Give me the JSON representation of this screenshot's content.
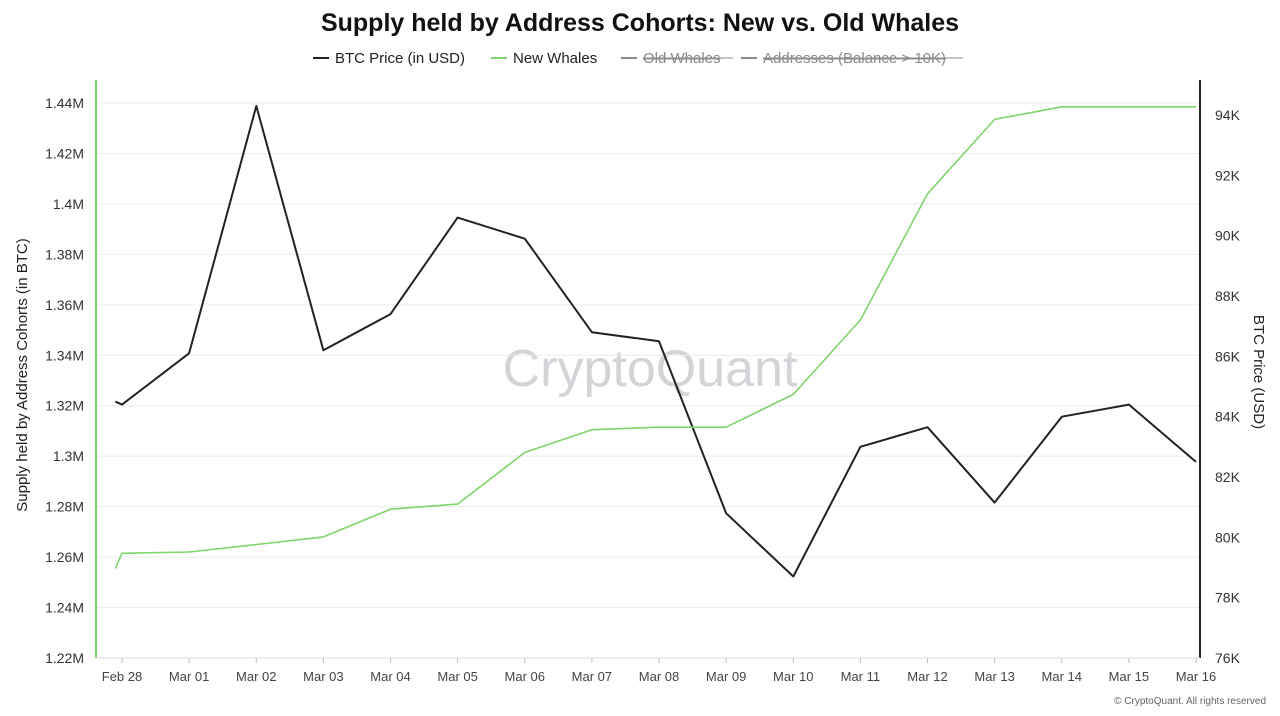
{
  "title": "Supply held by Address Cohorts: New vs. Old Whales",
  "watermark": "CryptoQuant",
  "copyright": "© CryptoQuant. All rights reserved",
  "colors": {
    "btc_price": "#222222",
    "new_whales": "#7ed56a",
    "hidden_series": "#8a8a8a",
    "grid": "#ececec"
  },
  "legend": [
    {
      "label": "BTC Price (in USD)",
      "color": "#222222",
      "hidden": false
    },
    {
      "label": "New Whales",
      "color": "#7ed56a",
      "hidden": false
    },
    {
      "label": "Old Whales",
      "color": "#8a8a8a",
      "hidden": true
    },
    {
      "label": "Addresses (Balance > 10K)",
      "color": "#8a8a8a",
      "hidden": true
    }
  ],
  "chart_data": {
    "type": "line",
    "title": "Supply held by Address Cohorts: New vs. Old Whales",
    "categories": [
      "Feb 28",
      "Mar 01",
      "Mar 02",
      "Mar 03",
      "Mar 04",
      "Mar 05",
      "Mar 06",
      "Mar 07",
      "Mar 08",
      "Mar 09",
      "Mar 10",
      "Mar 11",
      "Mar 12",
      "Mar 13",
      "Mar 14",
      "Mar 15",
      "Mar 16"
    ],
    "y_left": {
      "label": "Supply held by Address Cohorts (in BTC)",
      "range": [
        1.22,
        1.44
      ],
      "ticks": [
        1.22,
        1.24,
        1.26,
        1.28,
        1.3,
        1.32,
        1.34,
        1.36,
        1.38,
        1.4,
        1.42,
        1.44
      ],
      "tick_labels": [
        "1.22M",
        "1.24M",
        "1.26M",
        "1.28M",
        "1.3M",
        "1.32M",
        "1.34M",
        "1.36M",
        "1.38M",
        "1.4M",
        "1.42M",
        "1.44M"
      ]
    },
    "y_right": {
      "label": "BTC Price (USD)",
      "range": [
        76000,
        94000
      ],
      "ticks": [
        76000,
        78000,
        80000,
        82000,
        84000,
        86000,
        88000,
        90000,
        92000,
        94000
      ],
      "tick_labels": [
        "76K",
        "78K",
        "80K",
        "82K",
        "84K",
        "86K",
        "88K",
        "90K",
        "92K",
        "94K"
      ]
    },
    "grid": true,
    "legend_position": "top-center",
    "series": [
      {
        "name": "BTC Price (in USD)",
        "axis": "right",
        "color": "#222222",
        "points": [
          {
            "x": -0.1,
            "y": 84500
          },
          {
            "x": 0.0,
            "y": 84400
          },
          {
            "x": 1.0,
            "y": 86100
          },
          {
            "x": 2.0,
            "y": 94300
          },
          {
            "x": 3.0,
            "y": 86200
          },
          {
            "x": 4.0,
            "y": 87400
          },
          {
            "x": 5.0,
            "y": 90600
          },
          {
            "x": 6.0,
            "y": 89900
          },
          {
            "x": 7.0,
            "y": 86800
          },
          {
            "x": 8.0,
            "y": 86500
          },
          {
            "x": 9.0,
            "y": 80800
          },
          {
            "x": 10.0,
            "y": 78700
          },
          {
            "x": 11.0,
            "y": 83000
          },
          {
            "x": 12.0,
            "y": 83650
          },
          {
            "x": 13.0,
            "y": 81150
          },
          {
            "x": 14.0,
            "y": 84000
          },
          {
            "x": 15.0,
            "y": 84400
          },
          {
            "x": 16.0,
            "y": 82500
          }
        ]
      },
      {
        "name": "New Whales",
        "axis": "left",
        "color": "#7ed56a",
        "points": [
          {
            "x": -0.1,
            "y": 1.2555
          },
          {
            "x": 0.0,
            "y": 1.2615
          },
          {
            "x": 1.0,
            "y": 1.262
          },
          {
            "x": 2.0,
            "y": 1.265
          },
          {
            "x": 3.0,
            "y": 1.268
          },
          {
            "x": 4.0,
            "y": 1.279
          },
          {
            "x": 5.0,
            "y": 1.281
          },
          {
            "x": 6.0,
            "y": 1.3015
          },
          {
            "x": 7.0,
            "y": 1.3105
          },
          {
            "x": 8.0,
            "y": 1.3115
          },
          {
            "x": 9.0,
            "y": 1.3115
          },
          {
            "x": 10.0,
            "y": 1.3245
          },
          {
            "x": 11.0,
            "y": 1.354
          },
          {
            "x": 12.0,
            "y": 1.404
          },
          {
            "x": 13.0,
            "y": 1.4335
          },
          {
            "x": 14.0,
            "y": 1.4385
          },
          {
            "x": 15.0,
            "y": 1.4385
          },
          {
            "x": 16.0,
            "y": 1.4385
          }
        ]
      }
    ]
  }
}
